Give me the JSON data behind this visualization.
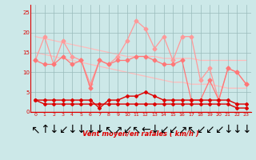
{
  "x": [
    0,
    1,
    2,
    3,
    4,
    5,
    6,
    7,
    8,
    9,
    10,
    11,
    12,
    13,
    14,
    15,
    16,
    17,
    18,
    19,
    20,
    21,
    22,
    23
  ],
  "rafales": [
    13,
    19,
    12,
    18,
    14,
    13,
    7,
    13,
    12,
    14,
    18,
    23,
    21,
    16,
    19,
    13,
    19,
    19,
    8,
    11,
    3,
    11,
    10,
    7
  ],
  "vent_moyen": [
    13,
    12,
    12,
    14,
    12,
    13,
    6,
    13,
    12,
    13,
    13,
    14,
    14,
    13,
    12,
    12,
    13,
    3,
    3,
    8,
    3,
    11,
    10,
    7
  ],
  "trend_rafales": [
    19,
    18.5,
    18,
    17.5,
    17,
    16.5,
    16,
    15.5,
    15,
    14.5,
    14,
    14,
    14,
    14,
    13.5,
    13.5,
    13.5,
    13.5,
    13,
    13,
    13,
    13,
    13,
    13
  ],
  "trend_vent": [
    15,
    14.5,
    14,
    13.5,
    13,
    12.5,
    12,
    11.5,
    11,
    10.5,
    10,
    9.5,
    9,
    8.5,
    8,
    7.5,
    7.5,
    7,
    7,
    7,
    6.5,
    6,
    6,
    6
  ],
  "vent_small1": [
    3,
    3,
    3,
    3,
    3,
    3,
    3,
    1,
    3,
    3,
    4,
    4,
    5,
    4,
    3,
    3,
    3,
    3,
    3,
    3,
    3,
    3,
    2,
    2
  ],
  "vent_small2": [
    3,
    2,
    2,
    2,
    2,
    2,
    2,
    2,
    2,
    2,
    2,
    2,
    2,
    2,
    2,
    2,
    2,
    2,
    2,
    2,
    2,
    2,
    1,
    1
  ],
  "bg_color": "#cce8e8",
  "grid_color": "#99bbbb",
  "line_color_dark": "#dd0000",
  "line_color_red": "#ee2222",
  "line_color_light": "#ff9999",
  "line_color_trend": "#ffbbbb",
  "xlabel": "Vent moyen/en rafales ( km/h )",
  "ylim": [
    0,
    27
  ],
  "xlim": [
    -0.5,
    23.5
  ],
  "yticks": [
    0,
    5,
    10,
    15,
    20,
    25
  ],
  "xticks": [
    0,
    1,
    2,
    3,
    4,
    5,
    6,
    7,
    8,
    9,
    10,
    11,
    12,
    13,
    14,
    15,
    16,
    17,
    18,
    19,
    20,
    21,
    22,
    23
  ],
  "arrow_labels": [
    "↖",
    "↑",
    "↓",
    "↙",
    "↓",
    "↓",
    "↓",
    "↓",
    "↖",
    "↗",
    "↙",
    "↖",
    "←",
    "↓",
    "↙",
    "↙",
    "↗",
    "↖",
    "↙",
    "↙",
    "↙",
    "↓",
    "↓",
    "↓"
  ]
}
